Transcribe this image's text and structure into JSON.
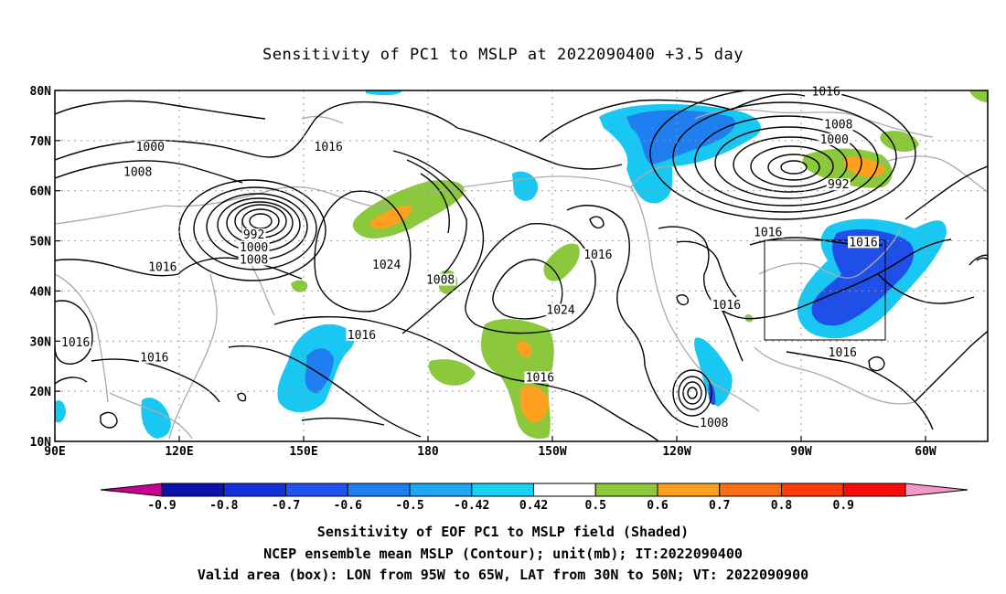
{
  "title": "Sensitivity of PC1 to MSLP at 2022090400 +3.5 day",
  "axes": {
    "x_ticks": [
      "90E",
      "120E",
      "150E",
      "180",
      "150W",
      "120W",
      "90W",
      "60W"
    ],
    "y_ticks": [
      "80N",
      "70N",
      "60N",
      "50N",
      "40N",
      "30N",
      "20N",
      "10N"
    ],
    "lon_range": [
      90,
      315
    ],
    "lat_range": [
      10,
      80
    ]
  },
  "colorbar": {
    "labels": [
      "-0.9",
      "-0.8",
      "-0.7",
      "-0.6",
      "-0.5",
      "-0.42",
      "0.42",
      "0.5",
      "0.6",
      "0.7",
      "0.8",
      "0.9"
    ],
    "colors": [
      "#c6008f",
      "#0a14a8",
      "#1431dc",
      "#1e55f0",
      "#1f7ef0",
      "#1fa8f5",
      "#18d2f5",
      "#ffffff",
      "#8cc83c",
      "#ffa01e",
      "#ff6e14",
      "#ff3c0a",
      "#ff0a0a",
      "#f598c8"
    ]
  },
  "contour_labels": [
    {
      "text": "1000",
      "lon": 113,
      "lat": 68.5
    },
    {
      "text": "1008",
      "lon": 110,
      "lat": 63.5
    },
    {
      "text": "1016",
      "lon": 156,
      "lat": 68.5
    },
    {
      "text": "1016",
      "lon": 276,
      "lat": 79.5
    },
    {
      "text": "1008",
      "lon": 279,
      "lat": 73
    },
    {
      "text": "1000",
      "lon": 278,
      "lat": 70
    },
    {
      "text": "992",
      "lon": 279,
      "lat": 61
    },
    {
      "text": "992",
      "lon": 138,
      "lat": 51
    },
    {
      "text": "1000",
      "lon": 138,
      "lat": 48.5
    },
    {
      "text": "1008",
      "lon": 138,
      "lat": 46
    },
    {
      "text": "1016",
      "lon": 116,
      "lat": 44.5
    },
    {
      "text": "1024",
      "lon": 170,
      "lat": 45
    },
    {
      "text": "1008",
      "lon": 183,
      "lat": 42
    },
    {
      "text": "1016",
      "lon": 221,
      "lat": 47
    },
    {
      "text": "1016",
      "lon": 262,
      "lat": 51.5
    },
    {
      "text": "1016",
      "lon": 285,
      "lat": 49.5
    },
    {
      "text": "1024",
      "lon": 212,
      "lat": 36
    },
    {
      "text": "1016",
      "lon": 252,
      "lat": 37
    },
    {
      "text": "1016",
      "lon": 95,
      "lat": 29.5
    },
    {
      "text": "1016",
      "lon": 164,
      "lat": 31
    },
    {
      "text": "1016",
      "lon": 114,
      "lat": 26.5
    },
    {
      "text": "1016",
      "lon": 207,
      "lat": 22.5
    },
    {
      "text": "1016",
      "lon": 280,
      "lat": 27.5
    },
    {
      "text": "1008",
      "lon": 249,
      "lat": 13.5
    }
  ],
  "valid_box": {
    "lon_from": "95W",
    "lon_to": "65W",
    "lat_from": "30N",
    "lat_to": "50N"
  },
  "caption": [
    "Sensitivity of EOF PC1 to MSLP field (Shaded)",
    "NCEP ensemble mean MSLP (Contour); unit(mb); IT:2022090400",
    "Valid area (box): LON from 95W to 65W, LAT from 30N to 50N; VT: 2022090900"
  ]
}
